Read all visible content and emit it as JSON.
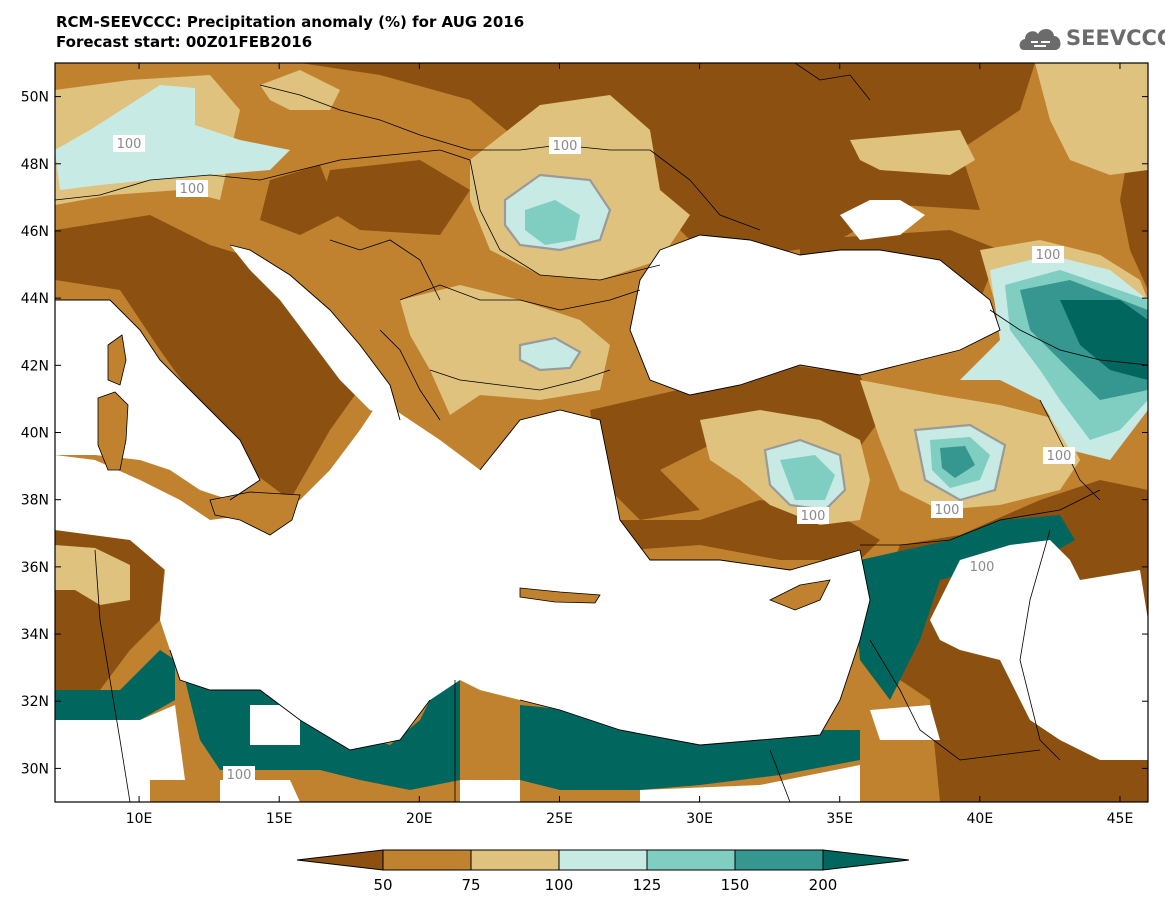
{
  "header": {
    "title": "RCM-SEEVCCC: Precipitation anomaly (%) for AUG 2016",
    "subtitle": "Forecast start: 00Z01FEB2016"
  },
  "logo": {
    "text": "SEEVCCC",
    "icon": "cloud-icon"
  },
  "map": {
    "lon_range": [
      7,
      46
    ],
    "lat_range": [
      29,
      51
    ],
    "lat_ticks": [
      "50N",
      "48N",
      "46N",
      "44N",
      "42N",
      "40N",
      "38N",
      "36N",
      "34N",
      "32N",
      "30N"
    ],
    "lon_ticks": [
      "10E",
      "15E",
      "20E",
      "25E",
      "30E",
      "35E",
      "40E",
      "45E"
    ],
    "contour_labels": [
      "100",
      "100",
      "100",
      "100",
      "100",
      "100",
      "100",
      "100",
      "100"
    ]
  },
  "colorbar": {
    "labels": [
      "50",
      "75",
      "100",
      "125",
      "150",
      "200"
    ],
    "colors": {
      "below_50": "#8c5111",
      "c50_75": "#c0822f",
      "c75_100": "#dfc27d",
      "c100_125": "#c7eae5",
      "c125_150": "#80cdc1",
      "c150_200": "#35978f",
      "above_200": "#01665e"
    }
  },
  "legend_colors": {
    "sea": "#ffffff",
    "land_missing": "#ffffff",
    "borders": "#000000",
    "contour_100": "#9a9a9a"
  }
}
